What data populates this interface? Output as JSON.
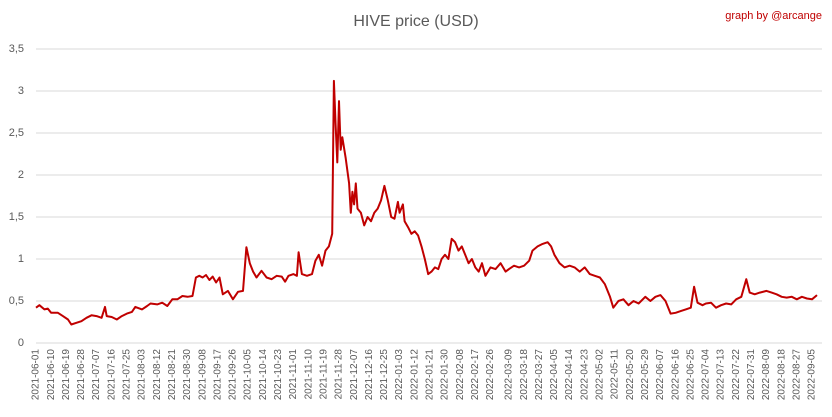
{
  "chart_data": {
    "type": "line",
    "title": "HIVE price (USD)",
    "annotation": "graph by @arcange",
    "grid": true,
    "ylim": [
      0,
      3.5
    ],
    "yticks": [
      0,
      {
        "value": 0.5,
        "label": "0,5"
      },
      1,
      {
        "value": 1.5,
        "label": "1,5"
      },
      2,
      {
        "value": 2.5,
        "label": "2,5"
      },
      3,
      {
        "value": 3.5,
        "label": "3,5"
      }
    ],
    "xlim": [
      "2021-06-01",
      "2022-09-08"
    ],
    "xticks": [
      "2021-06-01",
      "2021-06-10",
      "2021-06-19",
      "2021-06-28",
      "2021-07-07",
      "2021-07-16",
      "2021-07-25",
      "2021-08-03",
      "2021-08-12",
      "2021-08-21",
      "2021-08-30",
      "2021-09-08",
      "2021-09-17",
      "2021-09-26",
      "2021-10-05",
      "2021-10-14",
      "2021-10-23",
      "2021-11-01",
      "2021-11-10",
      "2021-11-19",
      "2021-11-28",
      "2021-12-07",
      "2021-12-16",
      "2021-12-25",
      "2022-01-03",
      "2022-01-12",
      "2022-01-21",
      "2022-01-30",
      "2022-02-08",
      "2022-02-17",
      "2022-02-26",
      "2022-03-09",
      "2022-03-18",
      "2022-03-27",
      "2022-04-05",
      "2022-04-14",
      "2022-04-23",
      "2022-05-02",
      "2022-05-11",
      "2022-05-20",
      "2022-05-29",
      "2022-06-07",
      "2022-06-16",
      "2022-06-25",
      "2022-07-04",
      "2022-07-13",
      "2022-07-22",
      "2022-07-31",
      "2022-08-09",
      "2022-08-18",
      "2022-08-27",
      "2022-09-05"
    ],
    "series": [
      {
        "name": "HIVE price (USD)",
        "color": "#c00000",
        "x": [
          "2021-06-01",
          "2021-06-03",
          "2021-06-06",
          "2021-06-08",
          "2021-06-10",
          "2021-06-14",
          "2021-06-17",
          "2021-06-20",
          "2021-06-22",
          "2021-06-25",
          "2021-06-28",
          "2021-07-01",
          "2021-07-04",
          "2021-07-07",
          "2021-07-10",
          "2021-07-12",
          "2021-07-13",
          "2021-07-16",
          "2021-07-19",
          "2021-07-22",
          "2021-07-25",
          "2021-07-28",
          "2021-07-30",
          "2021-08-03",
          "2021-08-06",
          "2021-08-08",
          "2021-08-12",
          "2021-08-15",
          "2021-08-18",
          "2021-08-21",
          "2021-08-24",
          "2021-08-27",
          "2021-08-30",
          "2021-09-02",
          "2021-09-04",
          "2021-09-06",
          "2021-09-08",
          "2021-09-10",
          "2021-09-12",
          "2021-09-14",
          "2021-09-16",
          "2021-09-18",
          "2021-09-20",
          "2021-09-23",
          "2021-09-26",
          "2021-09-29",
          "2021-10-02",
          "2021-10-04",
          "2021-10-06",
          "2021-10-08",
          "2021-10-10",
          "2021-10-13",
          "2021-10-16",
          "2021-10-19",
          "2021-10-22",
          "2021-10-25",
          "2021-10-27",
          "2021-10-29",
          "2021-11-01",
          "2021-11-03",
          "2021-11-04",
          "2021-11-06",
          "2021-11-09",
          "2021-11-12",
          "2021-11-14",
          "2021-11-16",
          "2021-11-18",
          "2021-11-20",
          "2021-11-22",
          "2021-11-24",
          "2021-11-25",
          "2021-11-26",
          "2021-11-27",
          "2021-11-28",
          "2021-11-29",
          "2021-11-30",
          "2021-12-02",
          "2021-12-04",
          "2021-12-05",
          "2021-12-06",
          "2021-12-07",
          "2021-12-08",
          "2021-12-09",
          "2021-12-11",
          "2021-12-13",
          "2021-12-15",
          "2021-12-17",
          "2021-12-19",
          "2021-12-21",
          "2021-12-23",
          "2021-12-25",
          "2021-12-27",
          "2021-12-29",
          "2021-12-31",
          "2022-01-02",
          "2022-01-03",
          "2022-01-05",
          "2022-01-06",
          "2022-01-08",
          "2022-01-10",
          "2022-01-12",
          "2022-01-14",
          "2022-01-16",
          "2022-01-18",
          "2022-01-20",
          "2022-01-22",
          "2022-01-24",
          "2022-01-26",
          "2022-01-28",
          "2022-01-30",
          "2022-02-01",
          "2022-02-03",
          "2022-02-05",
          "2022-02-07",
          "2022-02-09",
          "2022-02-11",
          "2022-02-13",
          "2022-02-15",
          "2022-02-17",
          "2022-02-19",
          "2022-02-21",
          "2022-02-23",
          "2022-02-26",
          "2022-03-01",
          "2022-03-04",
          "2022-03-07",
          "2022-03-09",
          "2022-03-12",
          "2022-03-15",
          "2022-03-18",
          "2022-03-21",
          "2022-03-23",
          "2022-03-26",
          "2022-03-29",
          "2022-04-01",
          "2022-04-03",
          "2022-04-05",
          "2022-04-08",
          "2022-04-11",
          "2022-04-14",
          "2022-04-17",
          "2022-04-20",
          "2022-04-23",
          "2022-04-26",
          "2022-04-29",
          "2022-05-02",
          "2022-05-05",
          "2022-05-08",
          "2022-05-10",
          "2022-05-13",
          "2022-05-16",
          "2022-05-19",
          "2022-05-22",
          "2022-05-25",
          "2022-05-29",
          "2022-06-01",
          "2022-06-04",
          "2022-06-07",
          "2022-06-10",
          "2022-06-13",
          "2022-06-16",
          "2022-06-19",
          "2022-06-22",
          "2022-06-25",
          "2022-06-27",
          "2022-06-29",
          "2022-07-02",
          "2022-07-04",
          "2022-07-07",
          "2022-07-10",
          "2022-07-13",
          "2022-07-16",
          "2022-07-19",
          "2022-07-22",
          "2022-07-25",
          "2022-07-28",
          "2022-07-30",
          "2022-08-02",
          "2022-08-05",
          "2022-08-09",
          "2022-08-12",
          "2022-08-15",
          "2022-08-18",
          "2022-08-21",
          "2022-08-24",
          "2022-08-27",
          "2022-08-30",
          "2022-09-02",
          "2022-09-05",
          "2022-09-08"
        ],
        "values": [
          0.42,
          0.45,
          0.4,
          0.41,
          0.36,
          0.36,
          0.32,
          0.28,
          0.22,
          0.24,
          0.26,
          0.3,
          0.33,
          0.32,
          0.3,
          0.43,
          0.32,
          0.31,
          0.28,
          0.32,
          0.35,
          0.37,
          0.43,
          0.4,
          0.44,
          0.47,
          0.46,
          0.48,
          0.44,
          0.52,
          0.52,
          0.56,
          0.55,
          0.56,
          0.78,
          0.8,
          0.78,
          0.81,
          0.75,
          0.79,
          0.72,
          0.78,
          0.58,
          0.62,
          0.52,
          0.61,
          0.62,
          1.14,
          0.95,
          0.85,
          0.78,
          0.86,
          0.78,
          0.76,
          0.8,
          0.79,
          0.73,
          0.8,
          0.82,
          0.8,
          1.08,
          0.82,
          0.8,
          0.82,
          0.98,
          1.05,
          0.92,
          1.1,
          1.15,
          1.3,
          3.12,
          2.6,
          2.15,
          2.88,
          2.3,
          2.45,
          2.2,
          1.9,
          1.55,
          1.8,
          1.65,
          1.9,
          1.6,
          1.55,
          1.4,
          1.5,
          1.45,
          1.55,
          1.6,
          1.7,
          1.87,
          1.7,
          1.5,
          1.48,
          1.68,
          1.55,
          1.65,
          1.45,
          1.38,
          1.3,
          1.33,
          1.28,
          1.15,
          1.0,
          0.82,
          0.85,
          0.9,
          0.88,
          1.0,
          1.05,
          1.0,
          1.24,
          1.2,
          1.1,
          1.15,
          1.05,
          0.95,
          1.0,
          0.9,
          0.85,
          0.95,
          0.8,
          0.9,
          0.88,
          0.95,
          0.85,
          0.88,
          0.92,
          0.9,
          0.92,
          0.98,
          1.1,
          1.15,
          1.18,
          1.2,
          1.15,
          1.05,
          0.95,
          0.9,
          0.92,
          0.9,
          0.85,
          0.9,
          0.82,
          0.8,
          0.78,
          0.7,
          0.55,
          0.42,
          0.5,
          0.52,
          0.45,
          0.5,
          0.47,
          0.55,
          0.5,
          0.55,
          0.57,
          0.5,
          0.35,
          0.36,
          0.38,
          0.4,
          0.42,
          0.67,
          0.48,
          0.45,
          0.47,
          0.48,
          0.42,
          0.45,
          0.47,
          0.46,
          0.52,
          0.55,
          0.76,
          0.6,
          0.58,
          0.6,
          0.62,
          0.6,
          0.58,
          0.55,
          0.54,
          0.55,
          0.52,
          0.55,
          0.53,
          0.52,
          0.57
        ]
      }
    ]
  }
}
